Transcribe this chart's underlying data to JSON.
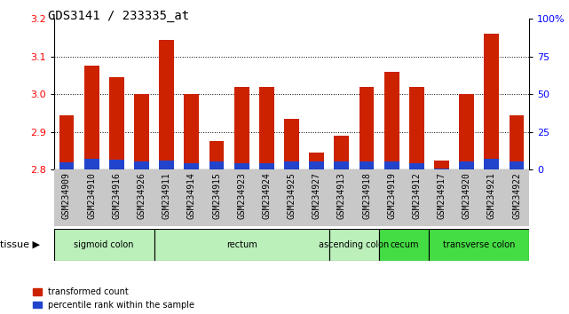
{
  "title": "GDS3141 / 233335_at",
  "samples": [
    "GSM234909",
    "GSM234910",
    "GSM234916",
    "GSM234926",
    "GSM234911",
    "GSM234914",
    "GSM234915",
    "GSM234923",
    "GSM234924",
    "GSM234925",
    "GSM234927",
    "GSM234913",
    "GSM234918",
    "GSM234919",
    "GSM234912",
    "GSM234917",
    "GSM234920",
    "GSM234921",
    "GSM234922"
  ],
  "red_values": [
    2.945,
    3.075,
    3.045,
    3.0,
    3.145,
    3.0,
    2.875,
    3.02,
    3.02,
    2.935,
    2.845,
    2.89,
    3.02,
    3.06,
    3.02,
    2.825,
    3.0,
    3.16,
    2.945
  ],
  "blue_pct": [
    12,
    18,
    17,
    13,
    15,
    10,
    13,
    10,
    10,
    13,
    13,
    13,
    13,
    13,
    10,
    2,
    13,
    18,
    13
  ],
  "ymin": 2.8,
  "ymax": 3.2,
  "y2min": 0,
  "y2max": 100,
  "yticks_left": [
    2.8,
    2.9,
    3.0,
    3.1,
    3.2
  ],
  "yticks_right": [
    0,
    25,
    50,
    75,
    100
  ],
  "tissues": [
    {
      "label": "sigmoid colon",
      "start": 0,
      "end": 4,
      "color": "#bbf0bb"
    },
    {
      "label": "rectum",
      "start": 4,
      "end": 11,
      "color": "#bbf0bb"
    },
    {
      "label": "ascending colon",
      "start": 11,
      "end": 13,
      "color": "#bbf0bb"
    },
    {
      "label": "cecum",
      "start": 13,
      "end": 15,
      "color": "#44dd44"
    },
    {
      "label": "transverse colon",
      "start": 15,
      "end": 19,
      "color": "#44dd44"
    }
  ],
  "tissue_label": "tissue",
  "bar_width": 0.6,
  "red_color": "#cc2200",
  "blue_color": "#2244cc",
  "legend_items": [
    "transformed count",
    "percentile rank within the sample"
  ],
  "plot_bg": "#ffffff",
  "xtick_bg": "#c8c8c8",
  "title_fontsize": 10,
  "tick_fontsize": 7,
  "label_fontsize": 8
}
